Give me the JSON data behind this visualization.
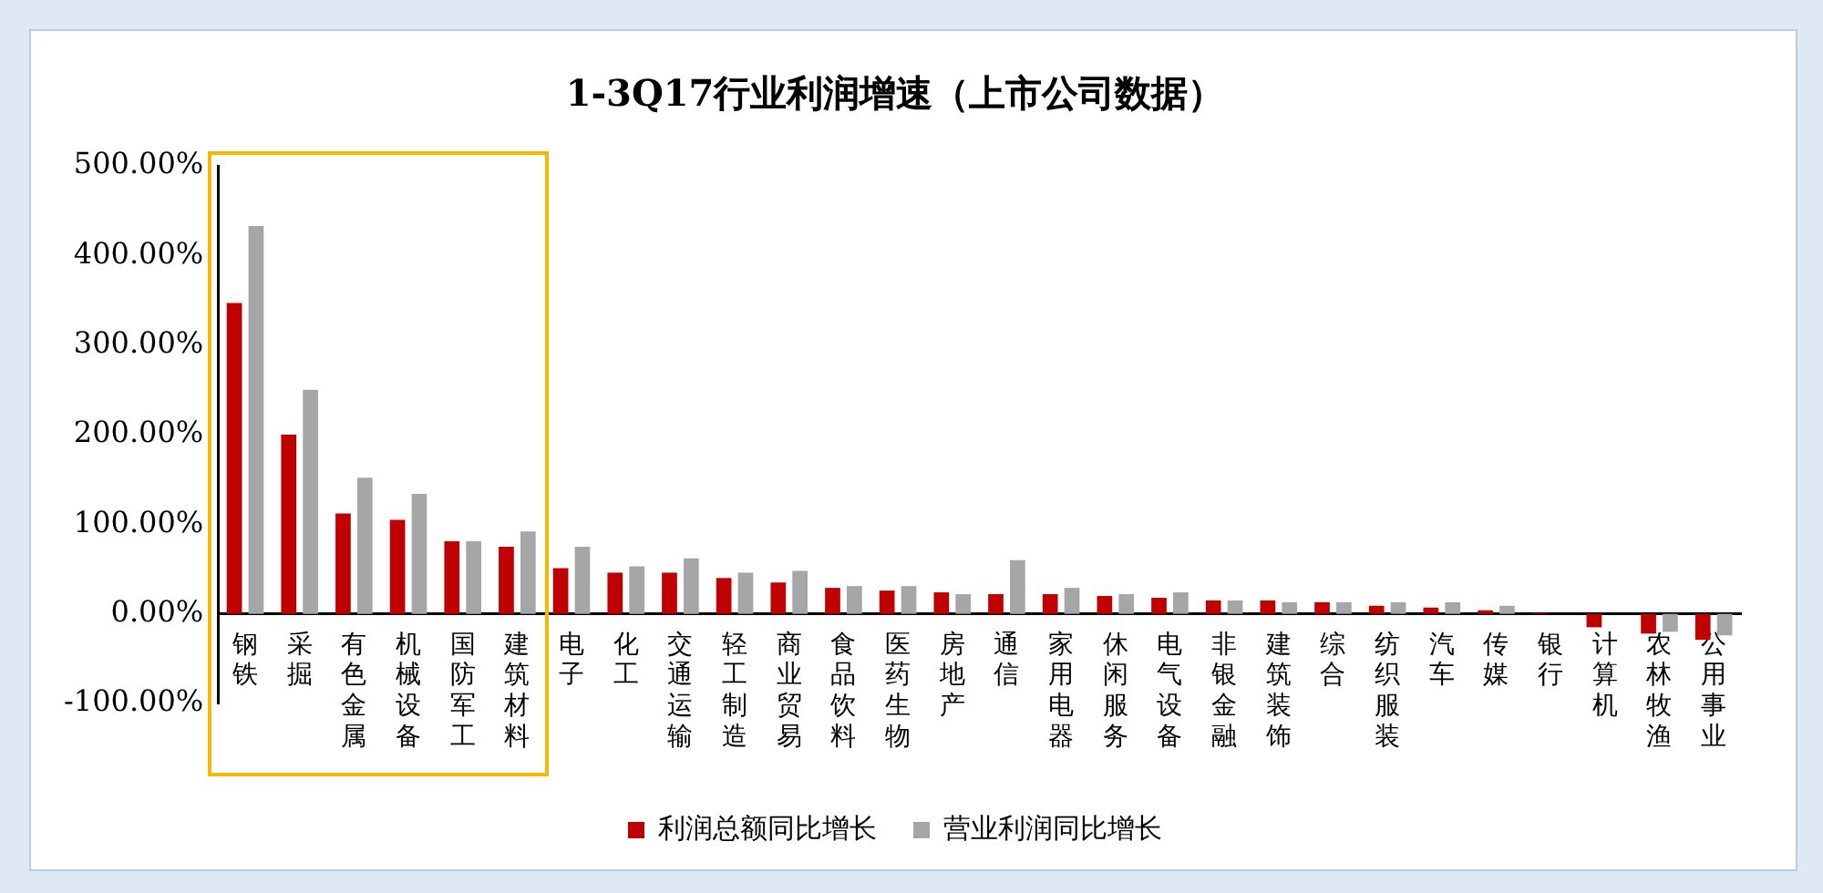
{
  "chart_data": {
    "type": "bar",
    "title": "1-3Q17行业利润增速（上市公司数据）",
    "categories": [
      "钢铁",
      "采掘",
      "有色金属",
      "机械设备",
      "国防军工",
      "建筑材料",
      "电子",
      "化工",
      "交通运输",
      "轻工制造",
      "商业贸易",
      "食品饮料",
      "医药生物",
      "房地产",
      "通信",
      "家用电器",
      "休闲服务",
      "电气设备",
      "非银金融",
      "建筑装饰",
      "综合",
      "纺织服装",
      "汽车",
      "传媒",
      "银行",
      "计算机",
      "农林牧渔",
      "公用事业"
    ],
    "series": [
      {
        "name": "利润总额同比增长",
        "color": "#c00000",
        "values": [
          347,
          200,
          112,
          105,
          81,
          75,
          51,
          46,
          46,
          40,
          35,
          29,
          26,
          24,
          22,
          22,
          20,
          18,
          15,
          15,
          13,
          9,
          7,
          4,
          1,
          -15,
          -22,
          -29
        ]
      },
      {
        "name": "营业利润同比增长",
        "color": "#a6a6a6",
        "values": [
          433,
          250,
          152,
          134,
          81,
          92,
          75,
          53,
          62,
          46,
          48,
          31,
          31,
          22,
          60,
          29,
          22,
          24,
          15,
          13,
          13,
          13,
          13,
          9,
          null,
          null,
          -20,
          -24
        ]
      }
    ],
    "ylim": [
      -100,
      500
    ],
    "yticks": [
      {
        "value": -100,
        "label": "-100.00%"
      },
      {
        "value": 0,
        "label": "0.00%"
      },
      {
        "value": 100,
        "label": "100.00%"
      },
      {
        "value": 200,
        "label": "200.00%"
      },
      {
        "value": 300,
        "label": "300.00%"
      },
      {
        "value": 400,
        "label": "400.00%"
      },
      {
        "value": 500,
        "label": "500.00%"
      }
    ],
    "grid": false,
    "legend": "bottom"
  }
}
